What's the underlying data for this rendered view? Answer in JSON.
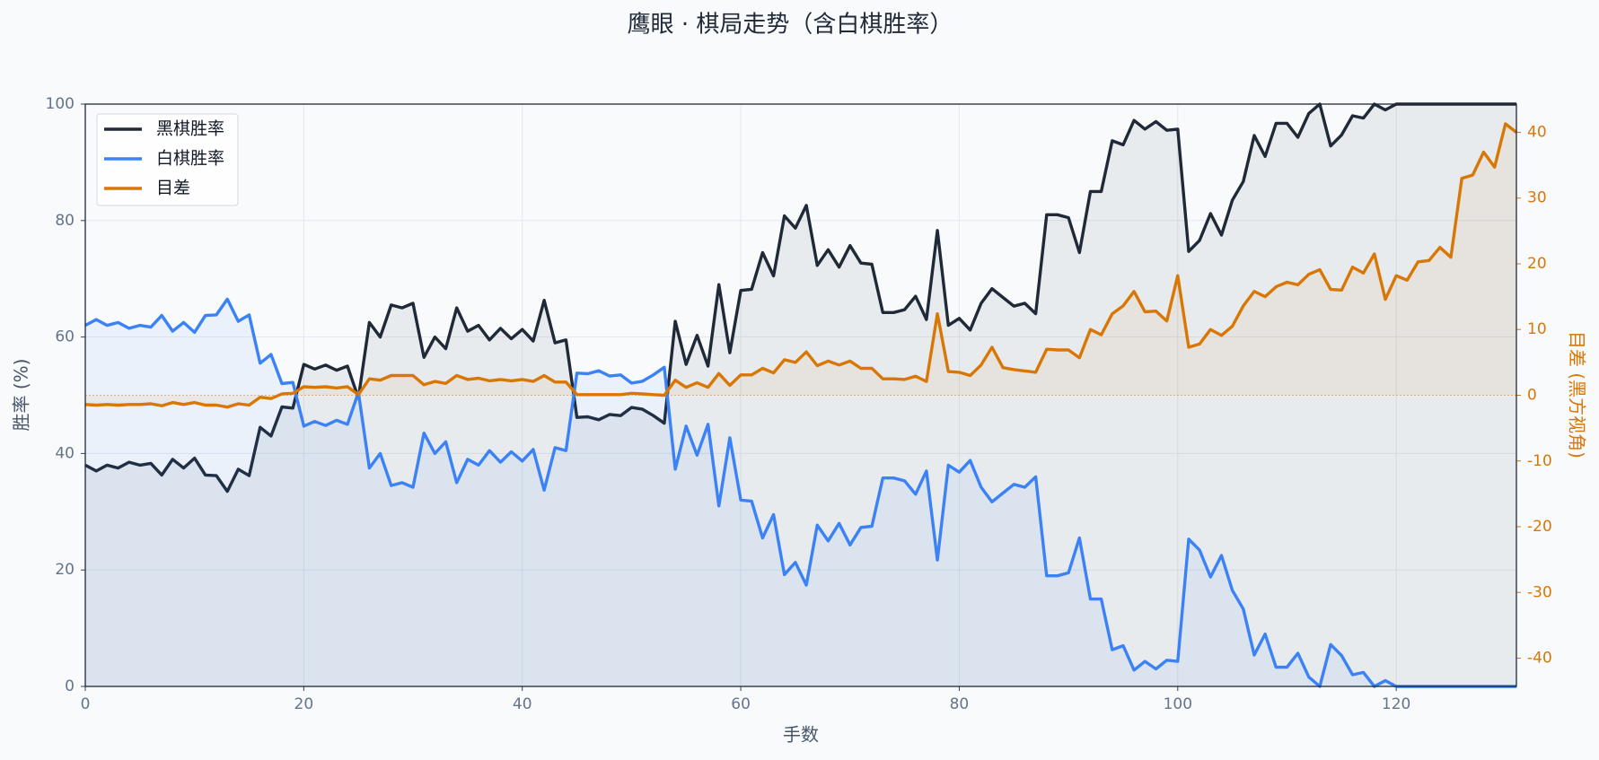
{
  "chart_data": {
    "type": "line",
    "title": "鹰眼 · 棋局走势（含白棋胜率）",
    "x_label": "手数",
    "y_label": "胜率 (%)",
    "y2_label": "目差 (黑方视角)",
    "x": [
      0,
      1,
      2,
      3,
      4,
      5,
      6,
      7,
      8,
      9,
      10,
      11,
      12,
      13,
      14,
      15,
      16,
      17,
      18,
      19,
      20,
      21,
      22,
      23,
      24,
      25,
      26,
      27,
      28,
      29,
      30,
      31,
      32,
      33,
      34,
      35,
      36,
      37,
      38,
      39,
      40,
      41,
      42,
      43,
      44,
      45,
      46,
      47,
      48,
      49,
      50,
      51,
      52,
      53,
      54,
      55,
      56,
      57,
      58,
      59,
      60,
      61,
      62,
      63,
      64,
      65,
      66,
      67,
      68,
      69,
      70,
      71,
      72,
      73,
      74,
      75,
      76,
      77,
      78,
      79,
      80,
      81,
      82,
      83,
      84,
      85,
      86,
      87,
      88,
      89,
      90,
      91,
      92,
      93,
      94,
      95,
      96,
      97,
      98,
      99,
      100,
      101,
      102,
      103,
      104,
      105,
      106,
      107,
      108,
      109,
      110,
      111,
      112,
      113,
      114,
      115,
      116,
      117,
      118,
      119,
      120,
      121,
      122,
      123,
      124,
      125,
      126,
      127,
      128,
      129,
      130,
      131
    ],
    "series": [
      {
        "name": "黑棋胜率",
        "color": "#1f2937",
        "values": [
          38,
          37,
          38,
          37.5,
          38.5,
          38,
          38.3,
          36.3,
          39,
          37.5,
          39.2,
          36.3,
          36.2,
          33.5,
          37.3,
          36.2,
          44.5,
          43,
          48,
          47.8,
          55.3,
          54.5,
          55.2,
          54.3,
          55,
          49.5,
          62.5,
          60,
          65.5,
          65,
          65.8,
          56.5,
          60,
          58,
          65,
          61,
          62,
          59.5,
          61.5,
          59.7,
          61.3,
          59.3,
          66.3,
          59,
          59.5,
          46.2,
          46.3,
          45.8,
          46.7,
          46.5,
          47.9,
          47.6,
          46.5,
          45.2,
          62.7,
          55.3,
          60.3,
          55,
          69,
          57.3,
          68,
          68.2,
          74.5,
          70.5,
          80.8,
          78.7,
          82.6,
          72.3,
          75,
          72,
          75.7,
          72.7,
          72.5,
          64.2,
          64.2,
          64.7,
          67,
          63,
          78.3,
          62,
          63.2,
          61.2,
          65.8,
          68.3,
          66.8,
          65.3,
          65.8,
          64,
          81,
          81,
          80.5,
          74.5,
          85,
          85,
          93.7,
          93,
          97.2,
          95.7,
          97,
          95.5,
          95.7,
          74.7,
          76.6,
          81.2,
          77.5,
          83.5,
          86.7,
          94.6,
          91,
          96.7,
          96.7,
          94.3,
          98.4,
          100,
          92.8,
          94.7,
          98,
          97.6,
          100,
          99,
          100,
          100,
          100,
          100,
          100,
          100,
          100,
          100,
          100,
          100,
          100,
          100
        ]
      },
      {
        "name": "白棋胜率",
        "color": "#3b82f6",
        "values": [
          62,
          63,
          62,
          62.5,
          61.5,
          62,
          61.7,
          63.7,
          61,
          62.5,
          60.8,
          63.7,
          63.8,
          66.5,
          62.7,
          63.8,
          55.5,
          57,
          52,
          52.2,
          44.7,
          45.5,
          44.8,
          45.7,
          45,
          50.5,
          37.5,
          40,
          34.5,
          35,
          34.2,
          43.5,
          40,
          42,
          35,
          39,
          38,
          40.5,
          38.5,
          40.3,
          38.7,
          40.7,
          33.7,
          41,
          40.5,
          53.8,
          53.7,
          54.2,
          53.3,
          53.5,
          52.1,
          52.4,
          53.5,
          54.8,
          37.3,
          44.7,
          39.7,
          45,
          31,
          42.7,
          32,
          31.8,
          25.5,
          29.5,
          19.2,
          21.3,
          17.4,
          27.7,
          25,
          28,
          24.3,
          27.3,
          27.5,
          35.8,
          35.8,
          35.3,
          33,
          37,
          21.7,
          38,
          36.8,
          38.8,
          34.2,
          31.7,
          33.2,
          34.7,
          34.2,
          36,
          19,
          19,
          19.5,
          25.5,
          15,
          15,
          6.3,
          7,
          2.8,
          4.3,
          3,
          4.5,
          4.3,
          25.3,
          23.4,
          18.8,
          22.5,
          16.5,
          13.3,
          5.4,
          9,
          3.3,
          3.3,
          5.7,
          1.6,
          0,
          7.2,
          5.3,
          2,
          2.4,
          0,
          1,
          0,
          0,
          0,
          0,
          0,
          0,
          0,
          0,
          0,
          0,
          0,
          0
        ]
      },
      {
        "name": "目差",
        "color": "#d97706",
        "axis": "y2",
        "values": [
          -1.4,
          -1.5,
          -1.4,
          -1.5,
          -1.4,
          -1.4,
          -1.3,
          -1.6,
          -1.1,
          -1.4,
          -1.1,
          -1.5,
          -1.5,
          -1.8,
          -1.3,
          -1.5,
          -0.3,
          -0.5,
          0.2,
          0.3,
          1.3,
          1.2,
          1.3,
          1.1,
          1.3,
          0.1,
          2.5,
          2.3,
          3,
          3,
          3,
          1.6,
          2.1,
          1.8,
          3,
          2.4,
          2.6,
          2.2,
          2.4,
          2.2,
          2.4,
          2.1,
          3,
          2,
          2,
          0.1,
          0.1,
          0.1,
          0.1,
          0.1,
          0.3,
          0.2,
          0.1,
          0,
          2.3,
          1.2,
          1.9,
          1.2,
          3.3,
          1.5,
          3.1,
          3.1,
          4.1,
          3.4,
          5.4,
          5,
          6.6,
          4.5,
          5.2,
          4.6,
          5.2,
          4.1,
          4.1,
          2.5,
          2.5,
          2.4,
          2.9,
          2.1,
          12.4,
          3.6,
          3.5,
          3,
          4.6,
          7.3,
          4.2,
          3.9,
          3.7,
          3.5,
          7,
          6.9,
          6.9,
          5.7,
          10,
          9.2,
          12.4,
          13.6,
          15.8,
          12.7,
          12.8,
          11.3,
          18.2,
          7.3,
          7.8,
          10,
          9.1,
          10.5,
          13.6,
          15.8,
          15,
          16.5,
          17.2,
          16.8,
          18.4,
          19.1,
          16.1,
          16,
          19.5,
          18.6,
          21.5,
          14.6,
          18.2,
          17.5,
          20.3,
          20.5,
          22.5,
          21,
          33,
          33.5,
          37,
          34.7,
          41.3,
          40
        ]
      }
    ],
    "xlim": [
      0,
      131
    ],
    "xticks": [
      0,
      20,
      40,
      60,
      80,
      100,
      120
    ],
    "ylim": [
      0,
      100
    ],
    "yticks": [
      0,
      20,
      40,
      60,
      80,
      100
    ],
    "y2lim": [
      -44.3,
      44.3
    ],
    "y2ticks": [
      -40,
      -30,
      -20,
      -10,
      0,
      10,
      20,
      30,
      40
    ],
    "grid": true,
    "legend": "upper left"
  }
}
